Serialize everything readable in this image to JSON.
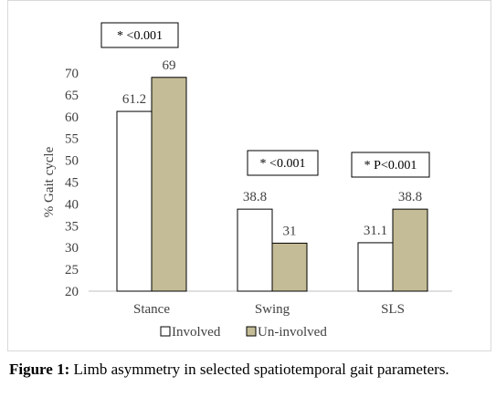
{
  "chart_data": {
    "type": "bar",
    "categories": [
      "Stance",
      "Swing",
      "SLS"
    ],
    "series": [
      {
        "name": "Involved",
        "values": [
          61.2,
          38.8,
          31.1
        ],
        "color": "#ffffff"
      },
      {
        "name": "Un-involved",
        "values": [
          69,
          31,
          38.8
        ],
        "color": "#c4bc96"
      }
    ],
    "data_labels": [
      [
        "61.2",
        "38.8",
        "31.1"
      ],
      [
        "69",
        "31",
        "38.8"
      ]
    ],
    "title": "",
    "xlabel": "",
    "ylabel": "% Gait cycle",
    "ylim": [
      20,
      70
    ],
    "yticks": [
      20,
      25,
      30,
      35,
      40,
      45,
      50,
      55,
      60,
      65,
      70
    ],
    "grid": false,
    "legend_position": "bottom",
    "annotations": [
      "* <0.001",
      "* <0.001",
      "* P<0.001"
    ],
    "bar_stroke": "#000000"
  },
  "caption": {
    "label": "Figure 1:",
    "text": " Limb asymmetry in selected spatiotemporal gait parameters."
  }
}
